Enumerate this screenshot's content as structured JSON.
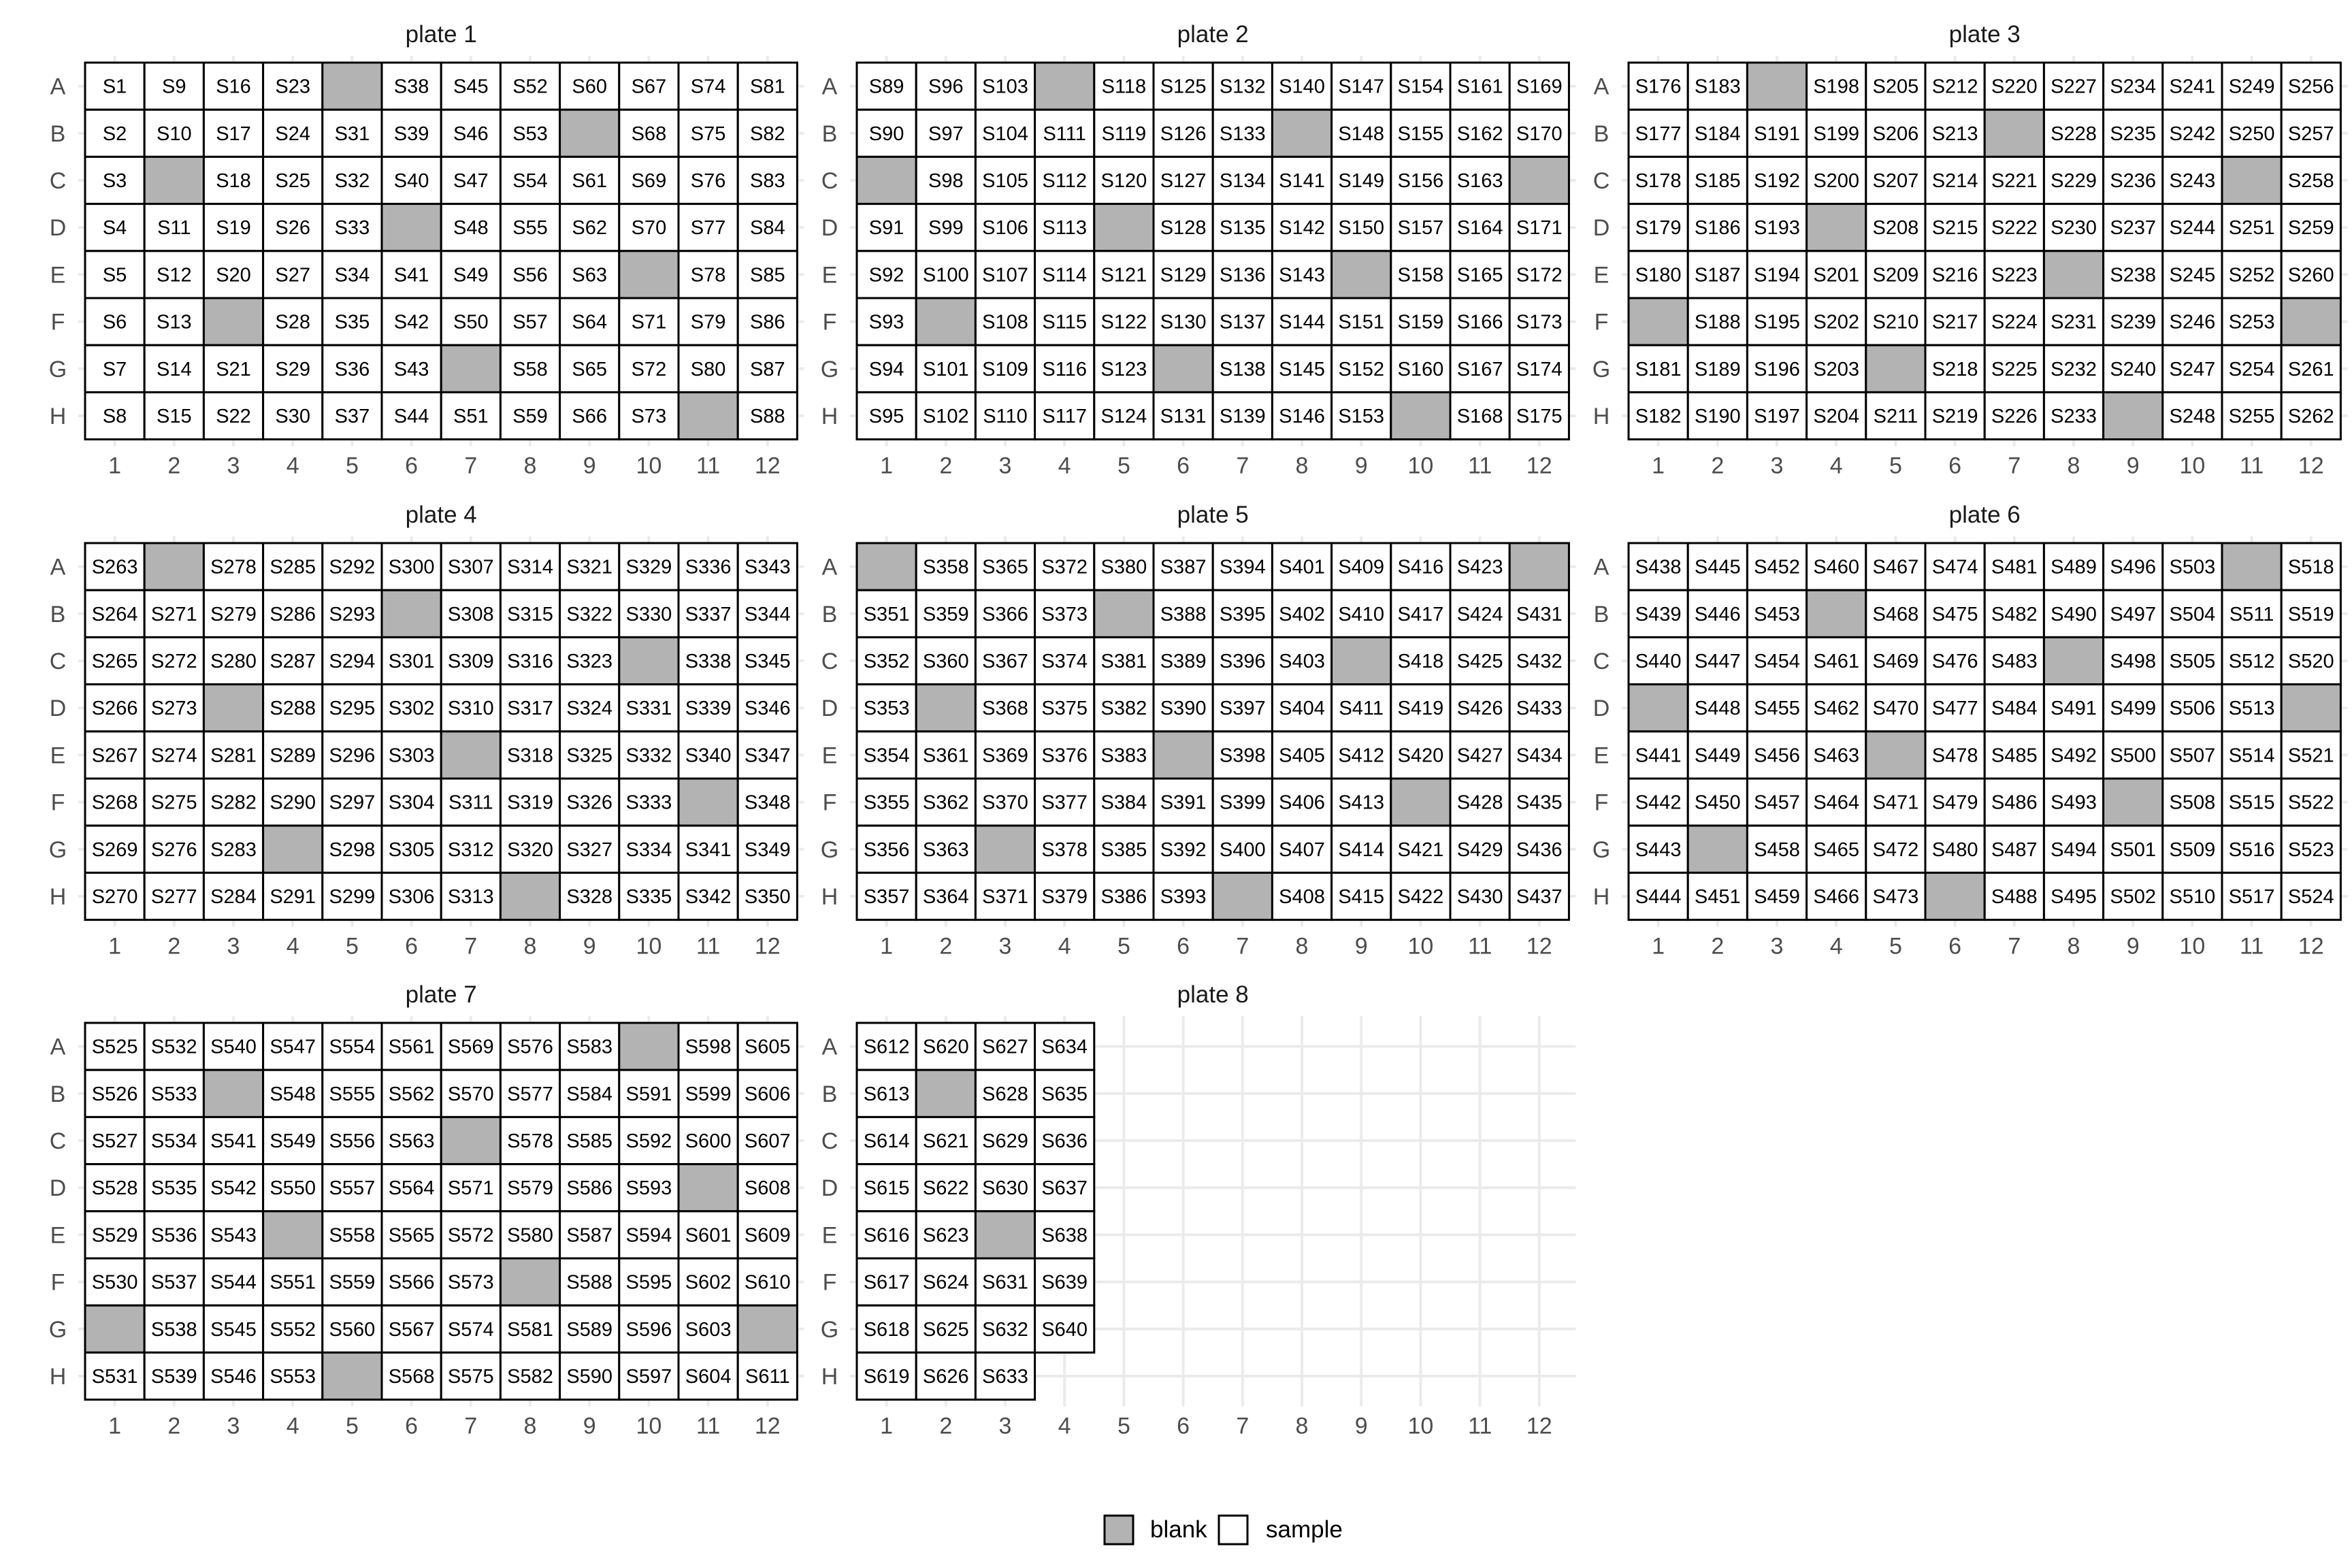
{
  "chart_data": {
    "type": "heatmap",
    "rows": [
      "A",
      "B",
      "C",
      "D",
      "E",
      "F",
      "G",
      "H"
    ],
    "columns": [
      "1",
      "2",
      "3",
      "4",
      "5",
      "6",
      "7",
      "8",
      "9",
      "10",
      "11",
      "12"
    ],
    "colors": {
      "blank": "#b3b3b3",
      "sample": "#ffffff",
      "border": "#000000",
      "grid": "#ebebeb"
    },
    "legend": {
      "position": "bottom",
      "items": [
        {
          "key": "blank",
          "label": "blank"
        },
        {
          "key": "sample",
          "label": "sample"
        }
      ]
    },
    "plates": [
      {
        "title": "plate 1",
        "first_sample": 1,
        "wells": 96,
        "blanks": [
          [
            "A",
            5
          ],
          [
            "B",
            9
          ],
          [
            "C",
            2
          ],
          [
            "D",
            6
          ],
          [
            "E",
            10
          ],
          [
            "F",
            3
          ],
          [
            "G",
            7
          ],
          [
            "H",
            11
          ]
        ]
      },
      {
        "title": "plate 2",
        "first_sample": 89,
        "wells": 96,
        "blanks": [
          [
            "A",
            4
          ],
          [
            "B",
            8
          ],
          [
            "C",
            1
          ],
          [
            "C",
            12
          ],
          [
            "D",
            5
          ],
          [
            "E",
            9
          ],
          [
            "F",
            2
          ],
          [
            "G",
            6
          ],
          [
            "H",
            10
          ]
        ]
      },
      {
        "title": "plate 3",
        "first_sample": 176,
        "wells": 96,
        "blanks": [
          [
            "A",
            3
          ],
          [
            "B",
            7
          ],
          [
            "C",
            11
          ],
          [
            "D",
            4
          ],
          [
            "E",
            8
          ],
          [
            "F",
            1
          ],
          [
            "F",
            12
          ],
          [
            "G",
            5
          ],
          [
            "H",
            9
          ]
        ]
      },
      {
        "title": "plate 4",
        "first_sample": 263,
        "wells": 96,
        "blanks": [
          [
            "A",
            2
          ],
          [
            "B",
            6
          ],
          [
            "C",
            10
          ],
          [
            "D",
            3
          ],
          [
            "E",
            7
          ],
          [
            "F",
            11
          ],
          [
            "G",
            4
          ],
          [
            "H",
            8
          ]
        ]
      },
      {
        "title": "plate 5",
        "first_sample": 351,
        "wells": 96,
        "blanks": [
          [
            "A",
            1
          ],
          [
            "A",
            12
          ],
          [
            "B",
            5
          ],
          [
            "C",
            9
          ],
          [
            "D",
            2
          ],
          [
            "E",
            6
          ],
          [
            "F",
            10
          ],
          [
            "G",
            3
          ],
          [
            "H",
            7
          ]
        ]
      },
      {
        "title": "plate 6",
        "first_sample": 438,
        "wells": 96,
        "blanks": [
          [
            "A",
            11
          ],
          [
            "B",
            4
          ],
          [
            "C",
            8
          ],
          [
            "D",
            1
          ],
          [
            "D",
            12
          ],
          [
            "E",
            5
          ],
          [
            "F",
            9
          ],
          [
            "G",
            2
          ],
          [
            "H",
            6
          ]
        ]
      },
      {
        "title": "plate 7",
        "first_sample": 525,
        "wells": 96,
        "blanks": [
          [
            "A",
            10
          ],
          [
            "B",
            3
          ],
          [
            "C",
            7
          ],
          [
            "D",
            11
          ],
          [
            "E",
            4
          ],
          [
            "F",
            8
          ],
          [
            "G",
            1
          ],
          [
            "G",
            12
          ],
          [
            "H",
            5
          ]
        ]
      },
      {
        "title": "plate 8",
        "first_sample": 612,
        "wells": 31,
        "blanks": [
          [
            "B",
            2
          ],
          [
            "E",
            3
          ]
        ]
      }
    ]
  }
}
